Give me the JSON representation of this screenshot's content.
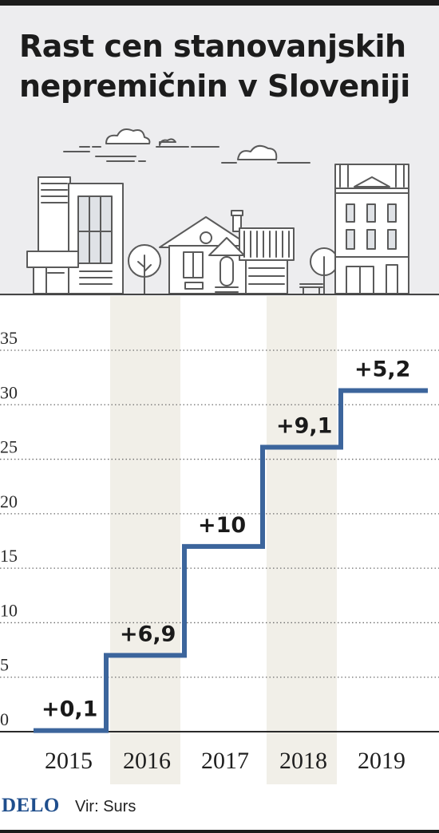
{
  "title": "Rast cen stanovanjskih nepremičnin v Sloveniji",
  "footer": {
    "logo": "DELO",
    "source": "Vir: Surs"
  },
  "colors": {
    "line": "#3c659c",
    "band": "#f1efe8",
    "panel": "#ededef",
    "logo": "#1f4e8c"
  },
  "chart_data": {
    "type": "line",
    "title": "Rast cen stanovanjskih nepremičnin v Sloveniji",
    "xlabel": "",
    "ylabel": "",
    "step": true,
    "ylim": [
      0,
      35
    ],
    "yticks": [
      0,
      5,
      10,
      15,
      20,
      25,
      30,
      35
    ],
    "grid": true,
    "categories": [
      "2015",
      "2016",
      "2017",
      "2018",
      "2019"
    ],
    "series": [
      {
        "values": [
          0.1,
          7.0,
          17.0,
          26.1,
          31.3
        ]
      }
    ],
    "annotations": [
      "+0,1",
      "+6,9",
      "+10",
      "+9,1",
      "+5,2"
    ]
  }
}
